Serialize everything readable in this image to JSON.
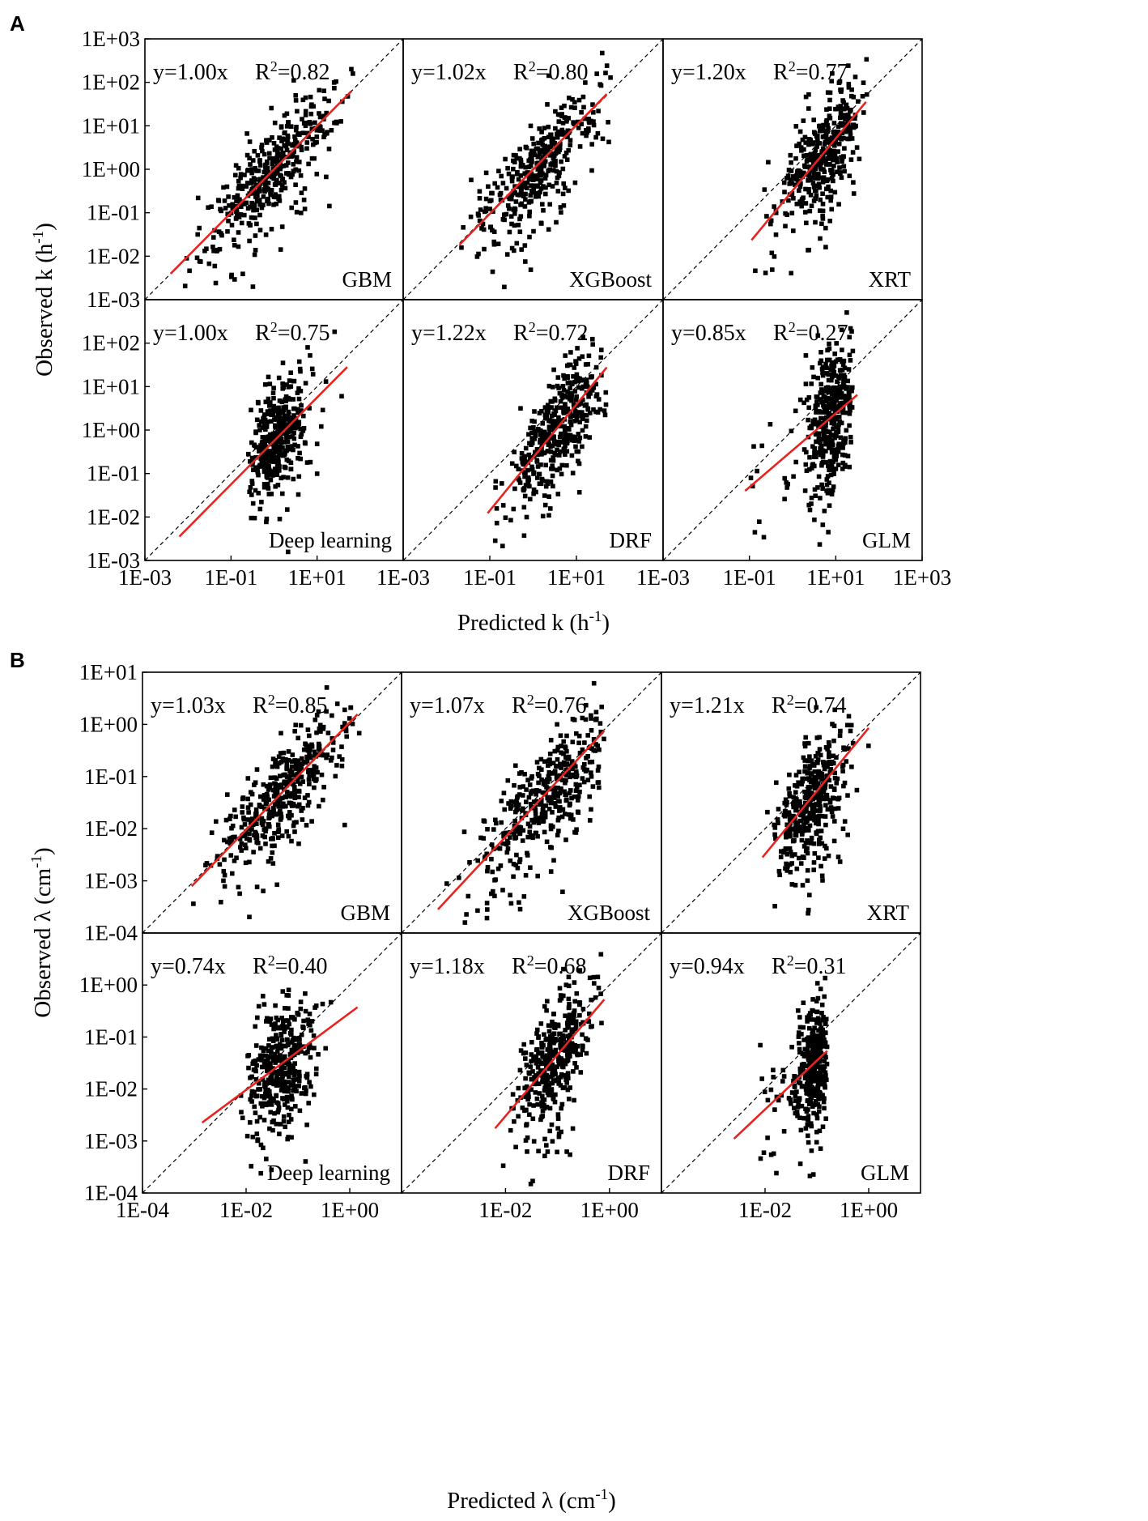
{
  "figure": {
    "panel_a_label": "A",
    "panel_b_label": "B",
    "colors": {
      "points": "#000000",
      "fit_line": "#e8231f",
      "identity_line": "#000000"
    }
  },
  "chart_data": [
    {
      "type": "scatter",
      "panel": "A",
      "xlabel": "Predicted k (h",
      "xlabel_sup": "-1",
      "xlabel_end": ")",
      "ylabel": "Observed k (h",
      "ylabel_sup": "-1",
      "ylabel_end": ")",
      "scale": "log10",
      "xlim_log": [
        -3,
        3
      ],
      "ylim_log": [
        -3,
        3
      ],
      "x_tick_labels_per_subplot": [
        [
          "1E-03",
          "1E-01",
          "1E+01"
        ],
        [
          "1E-03",
          "1E-01",
          "1E+01"
        ],
        [
          "1E-03",
          "1E-01",
          "1E+01",
          "1E+03"
        ]
      ],
      "x_tick_logs_per_subplot": [
        [
          -3,
          -1,
          1
        ],
        [
          -3,
          -1,
          1
        ],
        [
          -3,
          -1,
          1,
          3
        ]
      ],
      "y_tick_labels_top_row": [
        "1E+03",
        "1E+02",
        "1E+01",
        "1E+00",
        "1E-01",
        "1E-02",
        "1E-03"
      ],
      "y_tick_labels_bottom_row": [
        "1E+02",
        "1E+01",
        "1E+00",
        "1E-01",
        "1E-02",
        "1E-03"
      ],
      "y_tick_logs_top_row": [
        3,
        2,
        1,
        0,
        -1,
        -2,
        -3
      ],
      "y_tick_logs_bottom_row": [
        2,
        1,
        0,
        -1,
        -2,
        -3
      ],
      "subplots": [
        {
          "model": "GBM",
          "equation": "y=1.00x",
          "r2_label": "R",
          "r2_sup": "2",
          "r2_value": "=0.82",
          "slope": 1.0,
          "r2": 0.82,
          "fit_x_log_range": [
            -2.4,
            1.8
          ],
          "cloud": {
            "cx": -0.1,
            "cy": -0.1,
            "sx": 0.75,
            "spread": 0.5,
            "n": 420,
            "xmin": -2.4,
            "xmax": 1.85
          }
        },
        {
          "model": "XGBoost",
          "equation": "y=1.02x",
          "r2_label": "R",
          "r2_sup": "2",
          "r2_value": "=0.80",
          "slope": 1.02,
          "r2": 0.8,
          "fit_x_log_range": [
            -1.7,
            1.7
          ],
          "cloud": {
            "cx": 0.2,
            "cy": 0.2,
            "sx": 0.7,
            "spread": 0.48,
            "n": 380,
            "xmin": -1.9,
            "xmax": 1.8
          }
        },
        {
          "model": "XRT",
          "equation": "y=1.20x",
          "r2_label": "R",
          "r2_sup": "2",
          "r2_value": "=0.77",
          "slope": 1.2,
          "r2": 0.77,
          "fit_x_log_range": [
            -0.95,
            1.7
          ],
          "cloud": {
            "cx": 0.7,
            "cy": 0.35,
            "sx": 0.5,
            "spread": 0.55,
            "n": 400,
            "xmin": -1.0,
            "xmax": 1.75
          }
        },
        {
          "model": "Deep learning",
          "equation": "y=1.00x",
          "r2_label": "R",
          "r2_sup": "2",
          "r2_value": "=0.75",
          "slope": 1.0,
          "r2": 0.75,
          "fit_x_log_range": [
            -2.2,
            1.7
          ],
          "cloud": {
            "cx": 0.05,
            "cy": -0.2,
            "sx": 0.35,
            "spread": 0.6,
            "n": 380,
            "xmin": -0.6,
            "xmax": 1.7
          }
        },
        {
          "model": "DRF",
          "equation": "y=1.22x",
          "r2_label": "R",
          "r2_sup": "2",
          "r2_value": "=0.72",
          "slope": 1.22,
          "r2": 0.72,
          "fit_x_log_range": [
            -1.05,
            1.7
          ],
          "cloud": {
            "cx": 0.6,
            "cy": 0.1,
            "sx": 0.55,
            "spread": 0.6,
            "n": 400,
            "xmin": -1.0,
            "xmax": 1.75
          }
        },
        {
          "model": "GLM",
          "equation": "y=0.85x",
          "r2_label": "R",
          "r2_sup": "2",
          "r2_value": "=0.27",
          "slope": 0.85,
          "r2": 0.27,
          "fit_x_log_range": [
            -1.1,
            1.5
          ],
          "cloud": {
            "cx": 0.9,
            "cy": 0.3,
            "sx": 0.3,
            "spread": 0.8,
            "n": 400,
            "xmin": -1.0,
            "xmax": 1.4
          }
        }
      ]
    },
    {
      "type": "scatter",
      "panel": "B",
      "xlabel": "Predicted λ (cm",
      "xlabel_sup": "-1",
      "xlabel_end": ")",
      "ylabel": "Observed λ (cm",
      "ylabel_sup": "-1",
      "ylabel_end": ")",
      "scale": "log10",
      "xlim_log": [
        -4,
        1
      ],
      "ylim_log": [
        -4,
        1
      ],
      "x_tick_labels_per_subplot": [
        [
          "1E-04",
          "1E-02",
          "1E+00"
        ],
        [
          "1E-02",
          "1E+00"
        ],
        [
          "1E-02",
          "1E+00"
        ]
      ],
      "x_tick_logs_per_subplot": [
        [
          -4,
          -2,
          0
        ],
        [
          -2,
          0
        ],
        [
          -2,
          0
        ]
      ],
      "y_tick_labels_top_row": [
        "1E+01",
        "1E+00",
        "1E-01",
        "1E-02",
        "1E-03",
        "1E-04"
      ],
      "y_tick_labels_bottom_row": [
        "1E+00",
        "1E-01",
        "1E-02",
        "1E-03",
        "1E-04"
      ],
      "y_tick_logs_top_row": [
        1,
        0,
        -1,
        -2,
        -3,
        -4
      ],
      "y_tick_logs_bottom_row": [
        0,
        -1,
        -2,
        -3,
        -4
      ],
      "subplots": [
        {
          "model": "GBM",
          "equation": "y=1.03x",
          "r2_label": "R",
          "r2_sup": "2",
          "r2_value": "=0.85",
          "slope": 1.03,
          "r2": 0.85,
          "fit_x_log_range": [
            -3.05,
            0.15
          ],
          "cloud": {
            "cx": -1.3,
            "cy": -1.3,
            "sx": 0.6,
            "spread": 0.45,
            "n": 420,
            "xmin": -3.1,
            "xmax": 0.2
          }
        },
        {
          "model": "XGBoost",
          "equation": "y=1.07x",
          "r2_label": "R",
          "r2_sup": "2",
          "r2_value": "=0.76",
          "slope": 1.07,
          "r2": 0.76,
          "fit_x_log_range": [
            -3.3,
            -0.1
          ],
          "cloud": {
            "cx": -1.2,
            "cy": -1.3,
            "sx": 0.6,
            "spread": 0.5,
            "n": 400,
            "xmin": -3.4,
            "xmax": -0.1
          }
        },
        {
          "model": "XRT",
          "equation": "y=1.21x",
          "r2_label": "R",
          "r2_sup": "2",
          "r2_value": "=0.74",
          "slope": 1.21,
          "r2": 0.74,
          "fit_x_log_range": [
            -2.05,
            0.0
          ],
          "cloud": {
            "cx": -1.1,
            "cy": -1.4,
            "sx": 0.35,
            "spread": 0.5,
            "n": 400,
            "xmin": -2.1,
            "xmax": 0.05
          }
        },
        {
          "model": "Deep learning",
          "equation": "y=0.74x",
          "r2_label": "R",
          "r2_sup": "2",
          "r2_value": "=0.40",
          "slope": 0.74,
          "r2": 0.4,
          "fit_x_log_range": [
            -2.85,
            0.15
          ],
          "cloud": {
            "cx": -1.3,
            "cy": -1.5,
            "sx": 0.35,
            "spread": 0.6,
            "n": 380,
            "xmin": -2.1,
            "xmax": 0.1
          }
        },
        {
          "model": "DRF",
          "equation": "y=1.18x",
          "r2_label": "R",
          "r2_sup": "2",
          "r2_value": "=0.68",
          "slope": 1.18,
          "r2": 0.68,
          "fit_x_log_range": [
            -2.2,
            -0.1
          ],
          "cloud": {
            "cx": -1.05,
            "cy": -1.4,
            "sx": 0.35,
            "spread": 0.5,
            "n": 400,
            "xmin": -2.2,
            "xmax": -0.1
          }
        },
        {
          "model": "GLM",
          "equation": "y=0.94x",
          "r2_label": "R",
          "r2_sup": "2",
          "r2_value": "=0.31",
          "slope": 0.94,
          "r2": 0.31,
          "fit_x_log_range": [
            -2.6,
            -0.8
          ],
          "cloud": {
            "cx": -1.05,
            "cy": -1.5,
            "sx": 0.18,
            "spread": 0.55,
            "n": 380,
            "xmin": -2.1,
            "xmax": -0.8
          }
        }
      ]
    }
  ]
}
